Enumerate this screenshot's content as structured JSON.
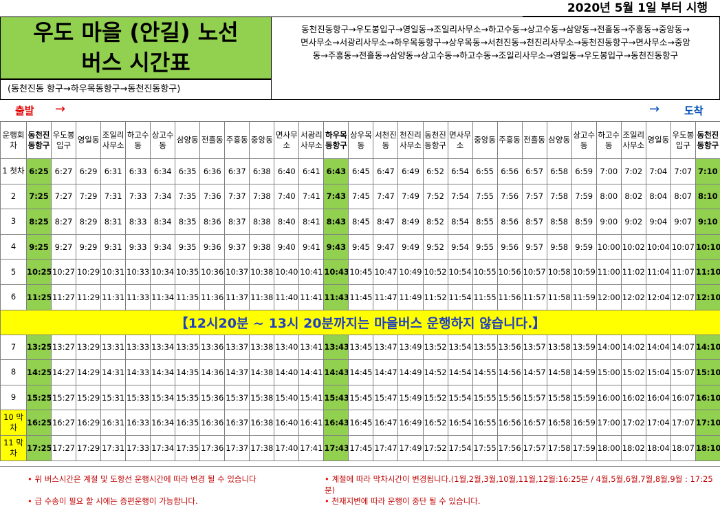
{
  "effective_date": "2020년  5월 1일 부터 시행",
  "title": {
    "line1": "우도 마을 (안길) 노선",
    "line2": "버스 시간표"
  },
  "subtitle": "(동천진동 항구→하우목동항구→동천진동항구)",
  "route_text": {
    "line1": "동천진동항구→우도봉입구→영일동→조일리사무소→하고수동→상고수동→삼양동→전흘동→주흥동→중앙동→",
    "line2": "면사무소→서광리사무소→하우목동항구→상우목동→서천진동→천진리사무소→동천진동항구→면사무소→중앙",
    "line3": "동→주흥동→전흘동→삼양동→상고수동→하고수동→조일리사무소→영일동→우도봉입구→동천진동항구"
  },
  "depart_label": "출발",
  "arrive_label": "도착",
  "arrow": "→",
  "header": {
    "trip": "운행회차",
    "stops": [
      "동천진동항구",
      "우도봉입구",
      "영일동",
      "조일리사무소",
      "하고수동",
      "상고수동",
      "삼양동",
      "전흘동",
      "주흥동",
      "중앙동",
      "면사무소",
      "서광리사무소",
      "하우목동항구",
      "상우목동",
      "서천진동",
      "천진리사무소",
      "동천진동항구",
      "면사무소",
      "중앙동",
      "주흥동",
      "전흘동",
      "삼양동",
      "상고수동",
      "하고수동",
      "조일리사무소",
      "영일동",
      "우도봉입구",
      "동천진동항구"
    ]
  },
  "hub_columns": [
    0,
    12,
    27
  ],
  "rows_morning": [
    {
      "trip": "1 첫차",
      "times": [
        "6:25",
        "6:27",
        "6:29",
        "6:31",
        "6:33",
        "6:34",
        "6:35",
        "6:36",
        "6:37",
        "6:38",
        "6:40",
        "6:41",
        "6:43",
        "6:45",
        "6:47",
        "6:49",
        "6:52",
        "6:54",
        "6:55",
        "6:56",
        "6:57",
        "6:58",
        "6:59",
        "7:00",
        "7:02",
        "7:04",
        "7:07",
        "7:10"
      ]
    },
    {
      "trip": "2",
      "times": [
        "7:25",
        "7:27",
        "7:29",
        "7:31",
        "7:33",
        "7:34",
        "7:35",
        "7:36",
        "7:37",
        "7:38",
        "7:40",
        "7:41",
        "7:43",
        "7:45",
        "7:47",
        "7:49",
        "7:52",
        "7:54",
        "7:55",
        "7:56",
        "7:57",
        "7:58",
        "7:59",
        "8:00",
        "8:02",
        "8:04",
        "8:07",
        "8:10"
      ]
    },
    {
      "trip": "3",
      "times": [
        "8:25",
        "8:27",
        "8:29",
        "8:31",
        "8:33",
        "8:34",
        "8:35",
        "8:36",
        "8:37",
        "8:38",
        "8:40",
        "8:41",
        "8:43",
        "8:45",
        "8:47",
        "8:49",
        "8:52",
        "8:54",
        "8:55",
        "8:56",
        "8:57",
        "8:58",
        "8:59",
        "9:00",
        "9:02",
        "9:04",
        "9:07",
        "9:10"
      ]
    },
    {
      "trip": "4",
      "times": [
        "9:25",
        "9:27",
        "9:29",
        "9:31",
        "9:33",
        "9:34",
        "9:35",
        "9:36",
        "9:37",
        "9:38",
        "9:40",
        "9:41",
        "9:43",
        "9:45",
        "9:47",
        "9:49",
        "9:52",
        "9:54",
        "9:55",
        "9:56",
        "9:57",
        "9:58",
        "9:59",
        "10:00",
        "10:02",
        "10:04",
        "10:07",
        "10:10"
      ]
    },
    {
      "trip": "5",
      "times": [
        "10:25",
        "10:27",
        "10:29",
        "10:31",
        "10:33",
        "10:34",
        "10:35",
        "10:36",
        "10:37",
        "10:38",
        "10:40",
        "10:41",
        "10:43",
        "10:45",
        "10:47",
        "10:49",
        "10:52",
        "10:54",
        "10:55",
        "10:56",
        "10:57",
        "10:58",
        "10:59",
        "11:00",
        "11:02",
        "11:04",
        "11:07",
        "11:10"
      ]
    },
    {
      "trip": "6",
      "times": [
        "11:25",
        "11:27",
        "11:29",
        "11:31",
        "11:33",
        "11:34",
        "11:35",
        "11:36",
        "11:37",
        "11:38",
        "11:40",
        "11:41",
        "11:43",
        "11:45",
        "11:47",
        "11:49",
        "11:52",
        "11:54",
        "11:55",
        "11:56",
        "11:57",
        "11:58",
        "11:59",
        "12:00",
        "12:02",
        "12:04",
        "12:07",
        "12:10"
      ]
    }
  ],
  "notice": "【12시20분 ~ 13시 20분까지는 마을버스 운행하지 않습니다.】",
  "rows_afternoon": [
    {
      "trip": "7",
      "last": false,
      "times": [
        "13:25",
        "13:27",
        "13:29",
        "13:31",
        "13:33",
        "13:34",
        "13:35",
        "13:36",
        "13:37",
        "13:38",
        "13:40",
        "13:41",
        "13:43",
        "13:45",
        "13:47",
        "13:49",
        "13:52",
        "13:54",
        "13:55",
        "13:56",
        "13:57",
        "13:58",
        "13:59",
        "14:00",
        "14:02",
        "14:04",
        "14:07",
        "14:10"
      ]
    },
    {
      "trip": "8",
      "last": false,
      "times": [
        "14:25",
        "14:27",
        "14:29",
        "14:31",
        "14:33",
        "14:34",
        "14:35",
        "14:36",
        "14:37",
        "14:38",
        "14:40",
        "14:41",
        "14:43",
        "14:45",
        "14:47",
        "14:49",
        "14:52",
        "14:54",
        "14:55",
        "14:56",
        "14:57",
        "14:58",
        "14:59",
        "15:00",
        "15:02",
        "15:04",
        "15:07",
        "15:10"
      ]
    },
    {
      "trip": "9",
      "last": false,
      "times": [
        "15:25",
        "15:27",
        "15:29",
        "15:31",
        "15:33",
        "15:34",
        "15:35",
        "15:36",
        "15:37",
        "15:38",
        "15:40",
        "15:41",
        "15:43",
        "15:45",
        "15:47",
        "15:49",
        "15:52",
        "15:54",
        "15:55",
        "15:56",
        "15:57",
        "15:58",
        "15:59",
        "16:00",
        "16:02",
        "16:04",
        "16:07",
        "16:10"
      ]
    },
    {
      "trip": "10 막차",
      "last": true,
      "times": [
        "16:25",
        "16:27",
        "16:29",
        "16:31",
        "16:33",
        "16:34",
        "16:35",
        "16:36",
        "16:37",
        "16:38",
        "16:40",
        "16:41",
        "16:43",
        "16:45",
        "16:47",
        "16:49",
        "16:52",
        "16:54",
        "16:55",
        "16:56",
        "16:57",
        "16:58",
        "16:59",
        "17:00",
        "17:02",
        "17:04",
        "17:07",
        "17:10"
      ]
    },
    {
      "trip": "11 막차",
      "last": true,
      "times": [
        "17:25",
        "17:27",
        "17:29",
        "17:31",
        "17:33",
        "17:34",
        "17:35",
        "17:36",
        "17:37",
        "17:38",
        "17:40",
        "17:41",
        "17:43",
        "17:45",
        "17:47",
        "17:49",
        "17:52",
        "17:54",
        "17:55",
        "17:56",
        "17:57",
        "17:58",
        "17:59",
        "18:00",
        "18:02",
        "18:04",
        "18:07",
        "18:10"
      ]
    }
  ],
  "notes": {
    "bullet": "•",
    "note1": "위 버스시간은 계절 및 도항선 운행시간에 따라 변경 될 수 있습니다",
    "note2": "계절에 따라 막차시간이 변경됩니다.(1월,2월,3월,10월,11월,12월:16:25분 / 4월,5월,6월,7월,8월,9월 : 17:25분)",
    "note3": "급 수송이 필요 할 시에는 증편운행이 가능합니다.",
    "note4": "천재지변에 따라 운행이 중단 될 수 있습니다."
  },
  "colors": {
    "hub_green": "#92d050",
    "notice_yellow": "#ffff00",
    "depart_red": "#e00000",
    "arrive_blue": "#0050b4",
    "note_red": "#c00000"
  }
}
